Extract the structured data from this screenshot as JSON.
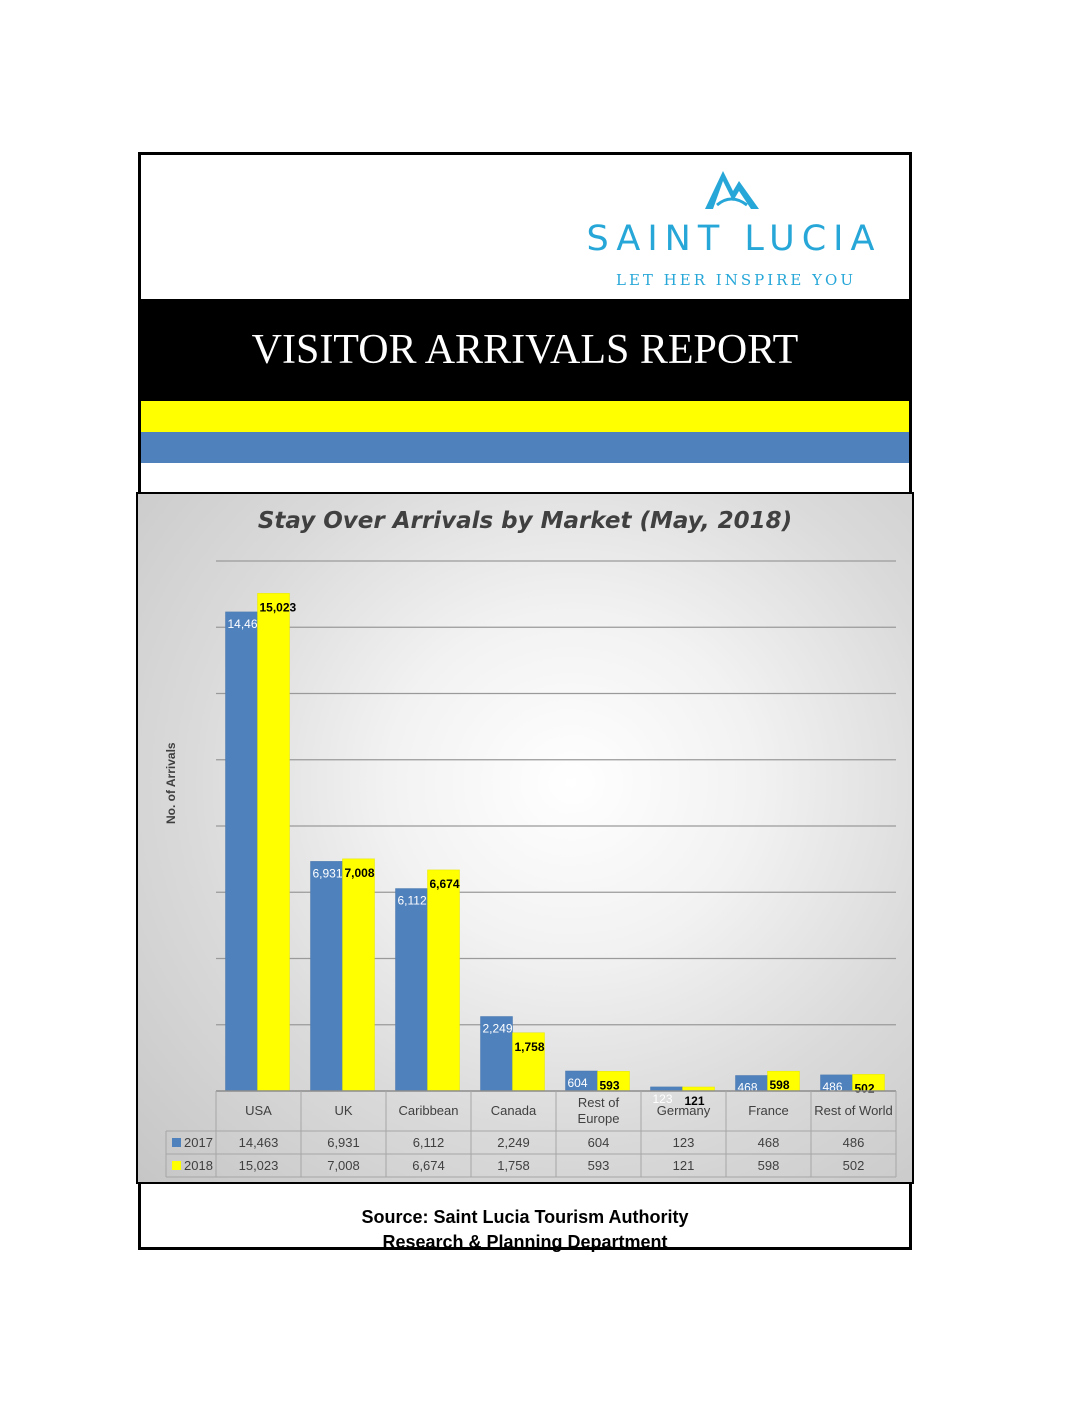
{
  "logo": {
    "name": "SAINT LUCIA",
    "tagline": "LET HER INSPIRE YOU",
    "mark_icon": "saint-lucia-pitons-logo",
    "brand_color": "#27a7d8"
  },
  "header": {
    "title": "VISITOR ARRIVALS REPORT"
  },
  "colors": {
    "band_yellow": "#ffff00",
    "band_blue": "#4f81bd",
    "series_2017": "#4f81bd",
    "series_2018": "#ffff00"
  },
  "chart_data": {
    "type": "bar",
    "title": "Stay Over Arrivals by Market (May, 2018)",
    "xlabel": "",
    "ylabel": "No. of Arrivals",
    "categories": [
      "USA",
      "UK",
      "Caribbean",
      "Canada",
      "Rest of Europe",
      "Germany",
      "France",
      "Rest of World"
    ],
    "series": [
      {
        "name": "2017",
        "values": [
          14463,
          6931,
          6112,
          2249,
          604,
          123,
          468,
          486
        ],
        "labels": [
          "14,463",
          "6,931",
          "6,112",
          "2,249",
          "604",
          "123",
          "468",
          "486"
        ]
      },
      {
        "name": "2018",
        "values": [
          15023,
          7008,
          6674,
          1758,
          593,
          121,
          598,
          502
        ],
        "labels": [
          "15,023",
          "7,008",
          "6,674",
          "1,758",
          "593",
          "121",
          "598",
          "502"
        ]
      }
    ],
    "ylim": [
      0,
      16000
    ],
    "grid": true,
    "legend": "data-table",
    "data_table": true
  },
  "source": {
    "line1": "Source: Saint Lucia Tourism Authority",
    "line2": "Research & Planning Department"
  }
}
